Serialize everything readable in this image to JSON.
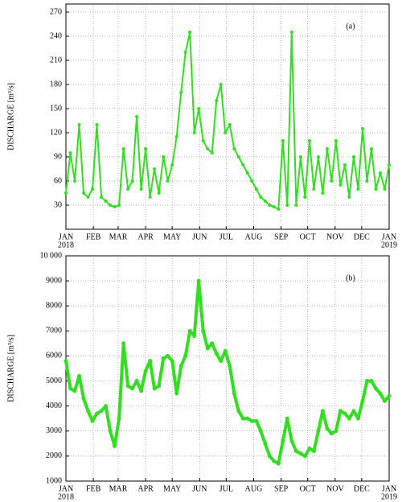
{
  "chart_data": [
    {
      "type": "line",
      "annotation": "(a)",
      "ylabel": "DISCHARGE [m³/s]",
      "color": "#33dd22",
      "grid": true,
      "markers": true,
      "x": [
        0,
        5,
        10,
        15,
        20,
        25,
        30,
        35,
        40,
        45,
        50,
        55,
        60,
        65,
        70,
        75,
        80,
        85,
        90,
        95,
        100,
        105,
        110,
        115,
        120,
        125,
        130,
        135,
        140,
        145,
        150,
        155,
        160,
        165,
        170,
        175,
        180,
        185,
        190,
        195,
        200,
        205,
        210,
        215,
        220,
        225,
        230,
        235,
        240,
        245,
        250,
        255,
        260,
        265,
        270,
        275,
        280,
        285,
        290,
        295,
        300,
        305,
        310,
        315,
        320,
        325,
        330,
        335,
        340,
        345,
        350,
        355,
        360,
        365
      ],
      "values": [
        45,
        95,
        60,
        130,
        45,
        40,
        50,
        130,
        40,
        35,
        30,
        28,
        30,
        100,
        50,
        60,
        140,
        50,
        100,
        40,
        75,
        45,
        90,
        60,
        80,
        115,
        170,
        220,
        245,
        120,
        150,
        110,
        100,
        95,
        160,
        180,
        120,
        130,
        100,
        90,
        80,
        70,
        60,
        50,
        40,
        35,
        30,
        28,
        25,
        110,
        30,
        245,
        30,
        90,
        40,
        110,
        50,
        90,
        45,
        100,
        60,
        110,
        55,
        80,
        40,
        90,
        50,
        125,
        60,
        100,
        50,
        70,
        50,
        80
      ],
      "xlim": [
        0,
        365
      ],
      "xticks": [
        {
          "value": 0,
          "label": "JAN"
        },
        {
          "value": 31,
          "label": "FEB"
        },
        {
          "value": 59,
          "label": "MAR"
        },
        {
          "value": 90,
          "label": "APR"
        },
        {
          "value": 120,
          "label": "MAY"
        },
        {
          "value": 151,
          "label": "JUN"
        },
        {
          "value": 181,
          "label": "JUL"
        },
        {
          "value": 212,
          "label": "AUG"
        },
        {
          "value": 243,
          "label": "SEP"
        },
        {
          "value": 273,
          "label": "OCT"
        },
        {
          "value": 304,
          "label": "NOV"
        },
        {
          "value": 334,
          "label": "DEC"
        },
        {
          "value": 365,
          "label": "JAN"
        }
      ],
      "year_labels": [
        {
          "value": 0,
          "label": "2018"
        },
        {
          "value": 365,
          "label": "2019"
        }
      ],
      "ylim": [
        0,
        280
      ],
      "yticks": [
        30,
        60,
        90,
        120,
        150,
        180,
        210,
        240,
        270
      ]
    },
    {
      "type": "line",
      "annotation": "(b)",
      "ylabel": "DISCHARGE [m³/s]",
      "color": "#33dd22",
      "grid": true,
      "markers": true,
      "x": [
        0,
        5,
        10,
        15,
        20,
        25,
        30,
        35,
        40,
        45,
        50,
        55,
        60,
        65,
        70,
        75,
        80,
        85,
        90,
        95,
        100,
        105,
        110,
        115,
        120,
        125,
        130,
        135,
        140,
        145,
        150,
        155,
        160,
        165,
        170,
        175,
        180,
        185,
        190,
        195,
        200,
        205,
        210,
        215,
        220,
        225,
        230,
        235,
        240,
        245,
        250,
        255,
        260,
        265,
        270,
        275,
        280,
        285,
        290,
        295,
        300,
        305,
        310,
        315,
        320,
        325,
        330,
        335,
        340,
        345,
        350,
        355,
        360,
        365
      ],
      "values": [
        5800,
        4700,
        4600,
        5200,
        4300,
        3800,
        3400,
        3700,
        3800,
        4000,
        3000,
        2400,
        3500,
        6500,
        4800,
        4700,
        5000,
        4600,
        5400,
        5800,
        4700,
        4800,
        5900,
        6000,
        5800,
        4500,
        5600,
        6000,
        7000,
        6800,
        9000,
        7000,
        6300,
        6500,
        6100,
        5800,
        6200,
        5600,
        4500,
        3800,
        3500,
        3500,
        3400,
        3400,
        3000,
        2500,
        2000,
        1800,
        1700,
        2600,
        3500,
        2600,
        2200,
        2100,
        2000,
        2300,
        2200,
        3000,
        3800,
        3100,
        2900,
        3000,
        3800,
        3700,
        3500,
        3800,
        3500,
        4200,
        5000,
        5000,
        4700,
        4500,
        4200,
        4400
      ],
      "xlim": [
        0,
        365
      ],
      "xticks": [
        {
          "value": 0,
          "label": "JAN"
        },
        {
          "value": 31,
          "label": "FEB"
        },
        {
          "value": 59,
          "label": "MAR"
        },
        {
          "value": 90,
          "label": "APR"
        },
        {
          "value": 120,
          "label": "MAY"
        },
        {
          "value": 151,
          "label": "JUN"
        },
        {
          "value": 181,
          "label": "JUL"
        },
        {
          "value": 212,
          "label": "AUG"
        },
        {
          "value": 243,
          "label": "SEP"
        },
        {
          "value": 273,
          "label": "OCT"
        },
        {
          "value": 304,
          "label": "NOV"
        },
        {
          "value": 334,
          "label": "DEC"
        },
        {
          "value": 365,
          "label": "JAN"
        }
      ],
      "year_labels": [
        {
          "value": 0,
          "label": "2018"
        },
        {
          "value": 365,
          "label": "2019"
        }
      ],
      "ylim": [
        1000,
        10000
      ],
      "yticks": [
        1000,
        2000,
        3000,
        4000,
        5000,
        6000,
        7000,
        8000,
        9000,
        {
          "value": 10000,
          "label": "10 000"
        }
      ]
    }
  ]
}
